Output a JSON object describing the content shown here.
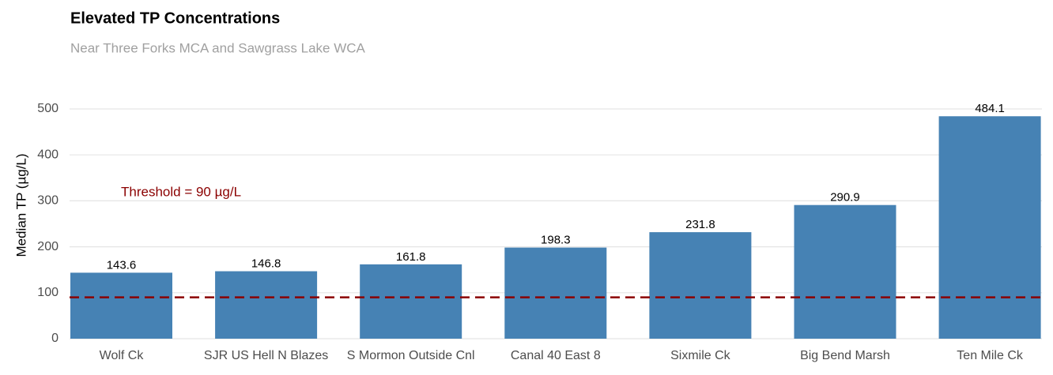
{
  "chart_data": {
    "type": "bar",
    "title": "Elevated TP Concentrations",
    "subtitle": "Near Three Forks MCA and Sawgrass Lake WCA",
    "y_label": "Median TP (µg/L)",
    "categories": [
      "Wolf Ck",
      "SJR US Hell N Blazes",
      "S Mormon Outside Cnl",
      "Canal 40 East 8",
      "Sixmile Ck",
      "Big Bend Marsh",
      "Ten Mile Ck"
    ],
    "values": [
      143.6,
      146.8,
      161.8,
      198.3,
      231.8,
      290.9,
      484.1
    ],
    "color": "#4682b4",
    "ylim": [
      0,
      500
    ],
    "yticks": [
      0,
      100,
      200,
      300,
      400,
      500
    ],
    "grid": true,
    "threshold": 90,
    "threshold_color": "#8b0000",
    "annotation": "Threshold = 90 µg/L"
  }
}
